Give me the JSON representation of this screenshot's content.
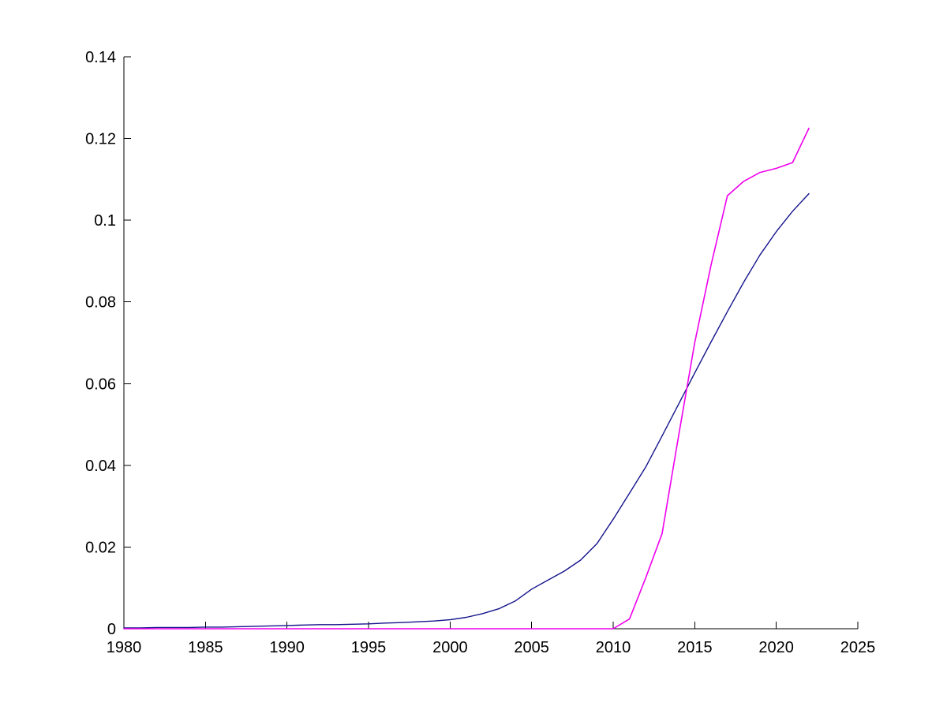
{
  "chart_data": {
    "type": "line",
    "title": "",
    "xlabel": "",
    "ylabel": "",
    "xlim": [
      1980,
      2025
    ],
    "ylim": [
      0,
      0.14
    ],
    "grid": false,
    "legend": "none",
    "axis_color": "#000000",
    "background_color": "#ffffff",
    "x_ticks": [
      1980,
      1985,
      1990,
      1995,
      2000,
      2005,
      2010,
      2015,
      2020,
      2025
    ],
    "x_tick_labels": [
      "1980",
      "1985",
      "1990",
      "1995",
      "2000",
      "2005",
      "2010",
      "2015",
      "2020",
      "2025"
    ],
    "y_ticks": [
      0,
      0.02,
      0.04,
      0.06,
      0.08,
      0.1,
      0.12,
      0.14
    ],
    "y_tick_labels": [
      "0",
      "0.02",
      "0.04",
      "0.06",
      "0.08",
      "0.1",
      "0.12",
      "0.14"
    ],
    "x": [
      1980,
      1981,
      1982,
      1983,
      1984,
      1985,
      1986,
      1987,
      1988,
      1989,
      1990,
      1991,
      1992,
      1993,
      1994,
      1995,
      1996,
      1997,
      1998,
      1999,
      2000,
      2001,
      2002,
      2003,
      2004,
      2005,
      2006,
      2007,
      2008,
      2009,
      2010,
      2011,
      2012,
      2013,
      2014,
      2015,
      2016,
      2017,
      2018,
      2019,
      2020,
      2021,
      2022
    ],
    "series": [
      {
        "name": "dark-blue-sigmoid-curve",
        "color": "#14148c",
        "stroke_width": 1.4,
        "values": [
          0.0002,
          0.0002,
          0.0003,
          0.0003,
          0.0003,
          0.0004,
          0.0004,
          0.0005,
          0.0006,
          0.0007,
          0.0008,
          0.0009,
          0.001,
          0.001,
          0.0011,
          0.0012,
          0.0014,
          0.0015,
          0.0017,
          0.0019,
          0.0022,
          0.0028,
          0.0037,
          0.0049,
          0.0068,
          0.0097,
          0.0119,
          0.0141,
          0.0168,
          0.0208,
          0.0268,
          0.0332,
          0.0396,
          0.0472,
          0.0549,
          0.0626,
          0.0702,
          0.0776,
          0.0848,
          0.0915,
          0.0972,
          0.1022,
          0.1065
        ]
      },
      {
        "name": "magenta-step-curve",
        "color": "#ee00ee",
        "stroke_width": 1.6,
        "values": [
          0,
          0,
          0,
          0,
          0,
          0,
          0,
          0,
          0,
          0,
          0,
          0,
          0,
          0,
          0,
          0,
          0,
          0,
          0,
          0,
          0,
          0,
          0,
          0,
          0,
          0,
          0,
          0,
          0,
          0,
          0,
          0.0024,
          0.0125,
          0.0233,
          0.047,
          0.07,
          0.089,
          0.106,
          0.1095,
          0.1117,
          0.1127,
          0.1141,
          0.1225
        ]
      }
    ]
  }
}
